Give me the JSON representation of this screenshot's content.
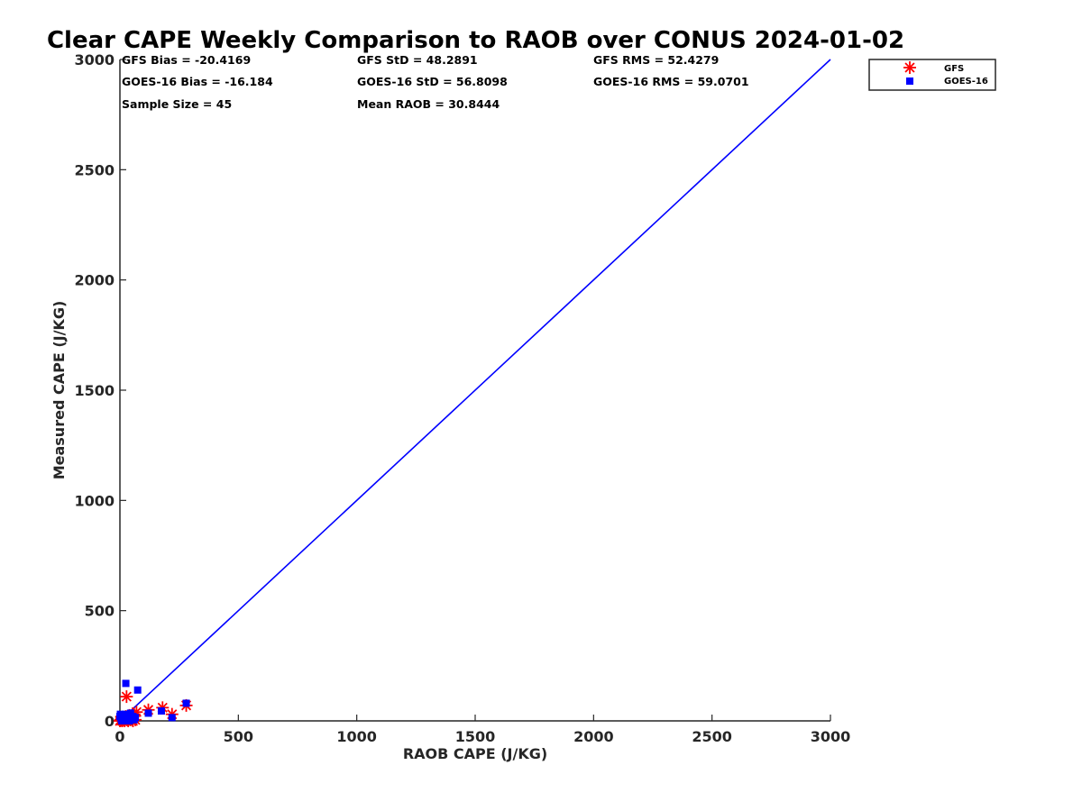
{
  "title": "Clear CAPE Weekly Comparison to RAOB over CONUS 2024-01-02",
  "stats": {
    "gfs_bias": "GFS Bias = -20.4169",
    "gfs_std": "GFS StD = 48.2891",
    "gfs_rms": "GFS RMS = 52.4279",
    "goes_bias": "GOES-16 Bias = -16.184",
    "goes_std": "GOES-16 StD = 56.8098",
    "goes_rms": "GOES-16 RMS = 59.0701",
    "sample_size": "Sample Size = 45",
    "mean_raob": "Mean RAOB = 30.8444"
  },
  "legend": {
    "gfs": "GFS",
    "goes": "GOES-16"
  },
  "colors": {
    "gfs": "#ff0000",
    "goes": "#0000ff",
    "line": "#0000ff",
    "axis": "#262626"
  },
  "chart_data": {
    "type": "scatter",
    "title": "Clear CAPE Weekly Comparison to RAOB over CONUS 2024-01-02",
    "xlabel": "RAOB CAPE (J/KG)",
    "ylabel": "Measured CAPE (J/KG)",
    "xlim": [
      0,
      3000
    ],
    "ylim": [
      0,
      3000
    ],
    "xticks": [
      0,
      500,
      1000,
      1500,
      2000,
      2500,
      3000
    ],
    "yticks": [
      0,
      500,
      1000,
      1500,
      2000,
      2500,
      3000
    ],
    "grid": false,
    "legend_position": "top-right",
    "reference_line": {
      "x": [
        0,
        3000
      ],
      "y": [
        0,
        3000
      ]
    },
    "series": [
      {
        "name": "GFS",
        "marker": "asterisk",
        "points": [
          [
            0,
            0
          ],
          [
            3,
            5
          ],
          [
            5,
            2
          ],
          [
            8,
            10
          ],
          [
            10,
            0
          ],
          [
            12,
            15
          ],
          [
            15,
            5
          ],
          [
            20,
            0
          ],
          [
            22,
            8
          ],
          [
            25,
            20
          ],
          [
            28,
            110
          ],
          [
            30,
            5
          ],
          [
            35,
            0
          ],
          [
            38,
            10
          ],
          [
            40,
            25
          ],
          [
            45,
            5
          ],
          [
            50,
            15
          ],
          [
            55,
            0
          ],
          [
            60,
            30
          ],
          [
            65,
            5
          ],
          [
            70,
            40
          ],
          [
            120,
            50
          ],
          [
            180,
            60
          ],
          [
            220,
            30
          ],
          [
            280,
            70
          ]
        ]
      },
      {
        "name": "GOES-16",
        "marker": "square",
        "points": [
          [
            0,
            20
          ],
          [
            2,
            30
          ],
          [
            5,
            10
          ],
          [
            8,
            0
          ],
          [
            10,
            25
          ],
          [
            12,
            5
          ],
          [
            15,
            15
          ],
          [
            18,
            0
          ],
          [
            20,
            10
          ],
          [
            22,
            30
          ],
          [
            25,
            170
          ],
          [
            28,
            20
          ],
          [
            30,
            5
          ],
          [
            35,
            15
          ],
          [
            40,
            0
          ],
          [
            45,
            35
          ],
          [
            50,
            10
          ],
          [
            55,
            20
          ],
          [
            60,
            5
          ],
          [
            65,
            15
          ],
          [
            75,
            140
          ],
          [
            120,
            35
          ],
          [
            175,
            45
          ],
          [
            220,
            15
          ],
          [
            280,
            80
          ]
        ]
      }
    ]
  }
}
